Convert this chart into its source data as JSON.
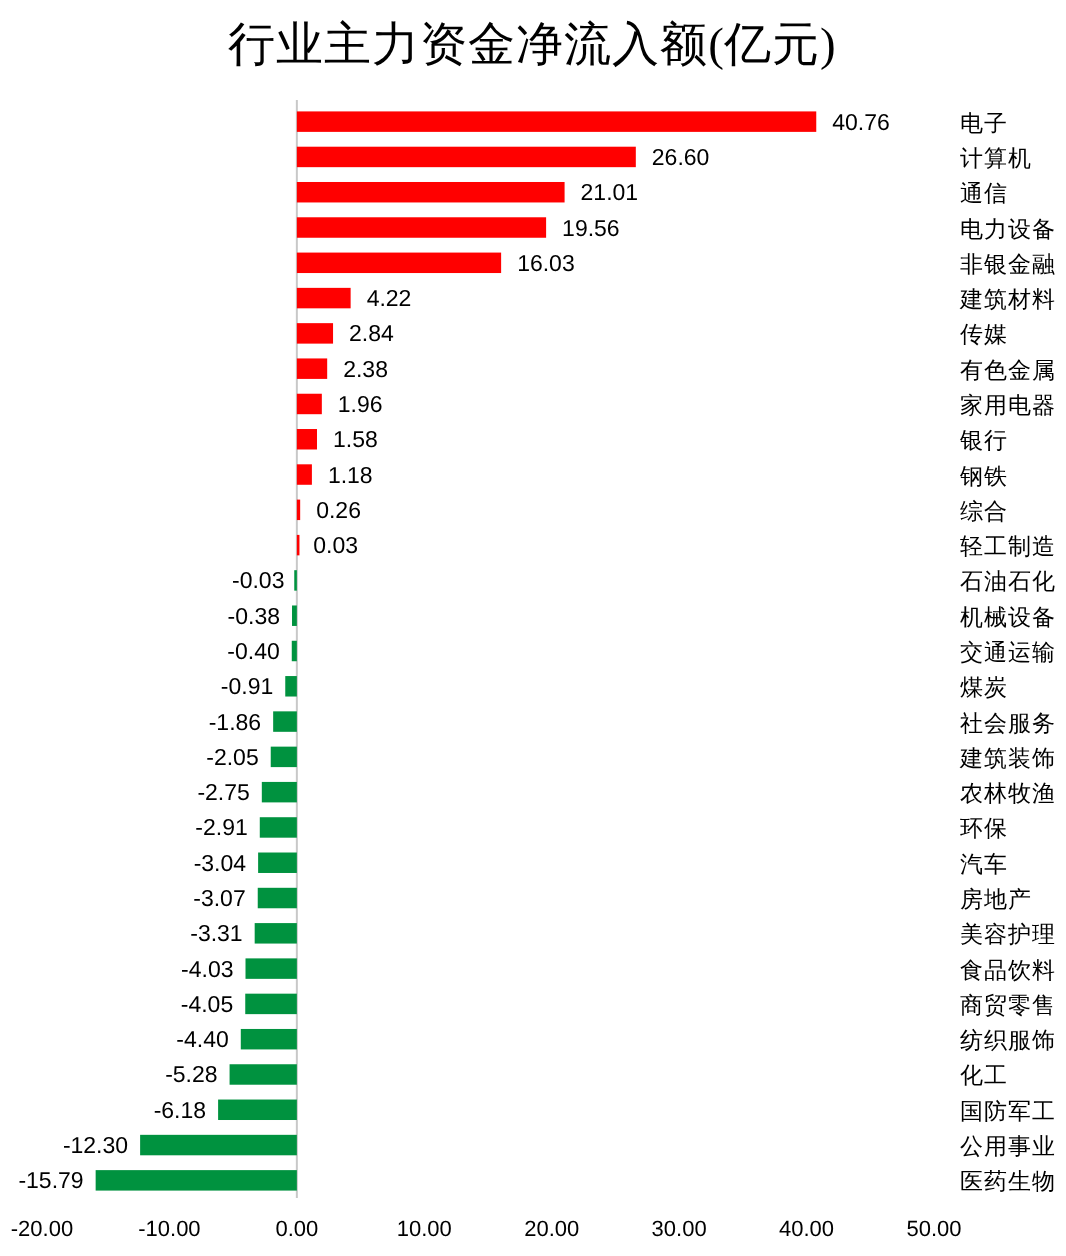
{
  "chart_data": {
    "type": "bar",
    "orientation": "horizontal",
    "title": "行业主力资金净流入额(亿元)",
    "categories": [
      "电子",
      "计算机",
      "通信",
      "电力设备",
      "非银金融",
      "建筑材料",
      "传媒",
      "有色金属",
      "家用电器",
      "银行",
      "钢铁",
      "综合",
      "轻工制造",
      "石油石化",
      "机械设备",
      "交通运输",
      "煤炭",
      "社会服务",
      "建筑装饰",
      "农林牧渔",
      "环保",
      "汽车",
      "房地产",
      "美容护理",
      "食品饮料",
      "商贸零售",
      "纺织服饰",
      "化工",
      "国防军工",
      "公用事业",
      "医药生物"
    ],
    "values": [
      40.76,
      26.6,
      21.01,
      19.56,
      16.03,
      4.22,
      2.84,
      2.38,
      1.96,
      1.58,
      1.18,
      0.26,
      0.03,
      -0.03,
      -0.38,
      -0.4,
      -0.91,
      -1.86,
      -2.05,
      -2.75,
      -2.91,
      -3.04,
      -3.07,
      -3.31,
      -4.03,
      -4.05,
      -4.4,
      -5.28,
      -6.18,
      -12.3,
      -15.79
    ],
    "value_labels": [
      "40.76",
      "26.60",
      "21.01",
      "19.56",
      "16.03",
      "4.22",
      "2.84",
      "2.38",
      "1.96",
      "1.58",
      "1.18",
      "0.26",
      "0.03",
      "-0.03",
      "-0.38",
      "-0.40",
      "-0.91",
      "-1.86",
      "-2.05",
      "-2.75",
      "-2.91",
      "-3.04",
      "-3.07",
      "-3.31",
      "-4.03",
      "-4.05",
      "-4.40",
      "-5.28",
      "-6.18",
      "-12.30",
      "-15.79"
    ],
    "colors": [
      "#ff0000",
      "#ff0000",
      "#ff0000",
      "#ff0000",
      "#ff0000",
      "#ff0000",
      "#ff0000",
      "#ff0000",
      "#ff0000",
      "#ff0000",
      "#ff0000",
      "#ff0000",
      "#ff0000",
      "#00923f",
      "#00923f",
      "#00923f",
      "#00923f",
      "#00923f",
      "#00923f",
      "#00923f",
      "#00923f",
      "#00923f",
      "#00923f",
      "#00923f",
      "#00923f",
      "#00923f",
      "#00923f",
      "#00923f",
      "#00923f",
      "#00923f",
      "#00923f"
    ],
    "xlim": [
      -20,
      50
    ],
    "xticks": [
      {
        "value": -20,
        "label": "-20.00"
      },
      {
        "value": -10,
        "label": "-10.00"
      },
      {
        "value": 0,
        "label": "0.00"
      },
      {
        "value": 10,
        "label": "10.00"
      },
      {
        "value": 20,
        "label": "20.00"
      },
      {
        "value": 30,
        "label": "30.00"
      },
      {
        "value": 40,
        "label": "40.00"
      },
      {
        "value": 50,
        "label": "50.00"
      }
    ]
  }
}
